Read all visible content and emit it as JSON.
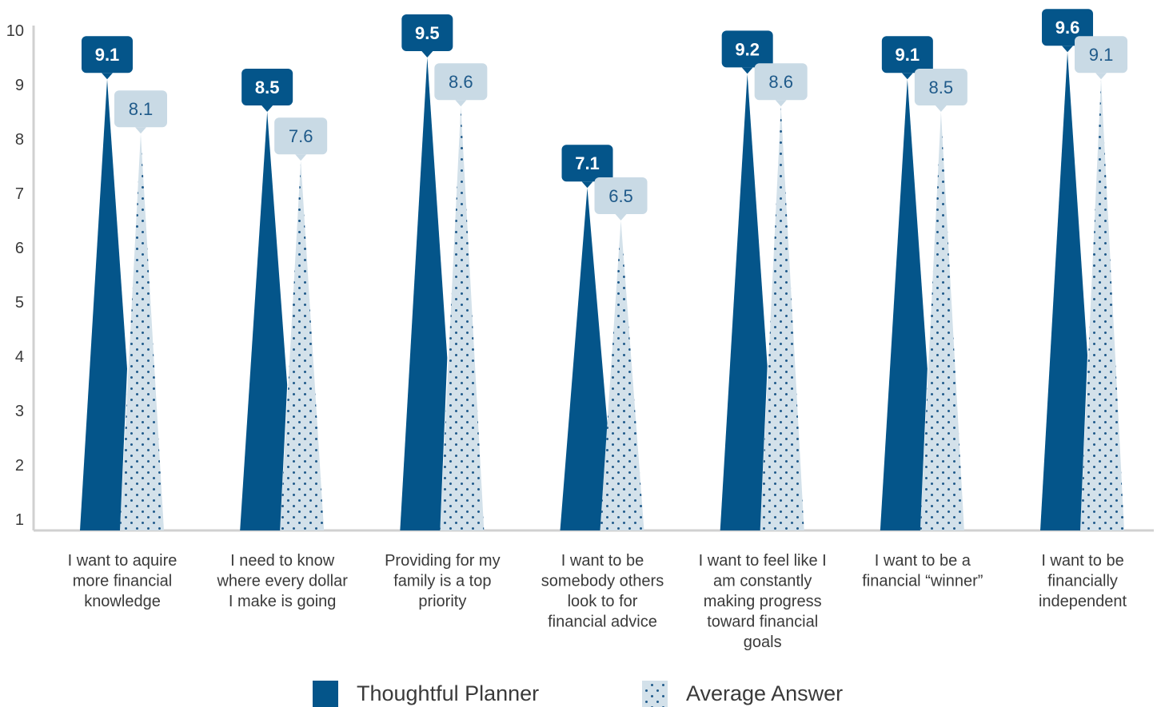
{
  "colors": {
    "primary": "#04558a",
    "secondary_fill": "#d3e1ea",
    "secondary_dots": "#1f5a8a",
    "secondary_label_bg": "#c9dae5",
    "axis": "#d0d0d0",
    "text": "#3a3a3a"
  },
  "chart_data": {
    "type": "bar",
    "title": "",
    "xlabel": "",
    "ylabel": "",
    "ylim": [
      0,
      10
    ],
    "yticks": [
      1,
      2,
      3,
      4,
      5,
      6,
      7,
      8,
      9,
      10
    ],
    "grid": false,
    "legend_position": "bottom",
    "categories": [
      [
        "I want to aquire",
        "more financial",
        "knowledge"
      ],
      [
        "I need to know",
        "where every dollar",
        "I make is going"
      ],
      [
        "Providing for my",
        "family is a top",
        "priority"
      ],
      [
        "I want to be",
        "somebody others",
        "look to for",
        "financial advice"
      ],
      [
        "I want to feel like I",
        "am constantly",
        "making progress",
        "toward financial",
        "goals"
      ],
      [
        "I want to be a",
        "financial “winner”"
      ],
      [
        "I want to be",
        "financially",
        "independent"
      ]
    ],
    "series": [
      {
        "name": "Thoughtful Planner",
        "values": [
          9.1,
          8.5,
          9.5,
          7.1,
          9.2,
          9.1,
          9.6
        ]
      },
      {
        "name": "Average Answer",
        "values": [
          8.1,
          7.6,
          8.6,
          6.5,
          8.6,
          8.5,
          9.1
        ]
      }
    ]
  }
}
